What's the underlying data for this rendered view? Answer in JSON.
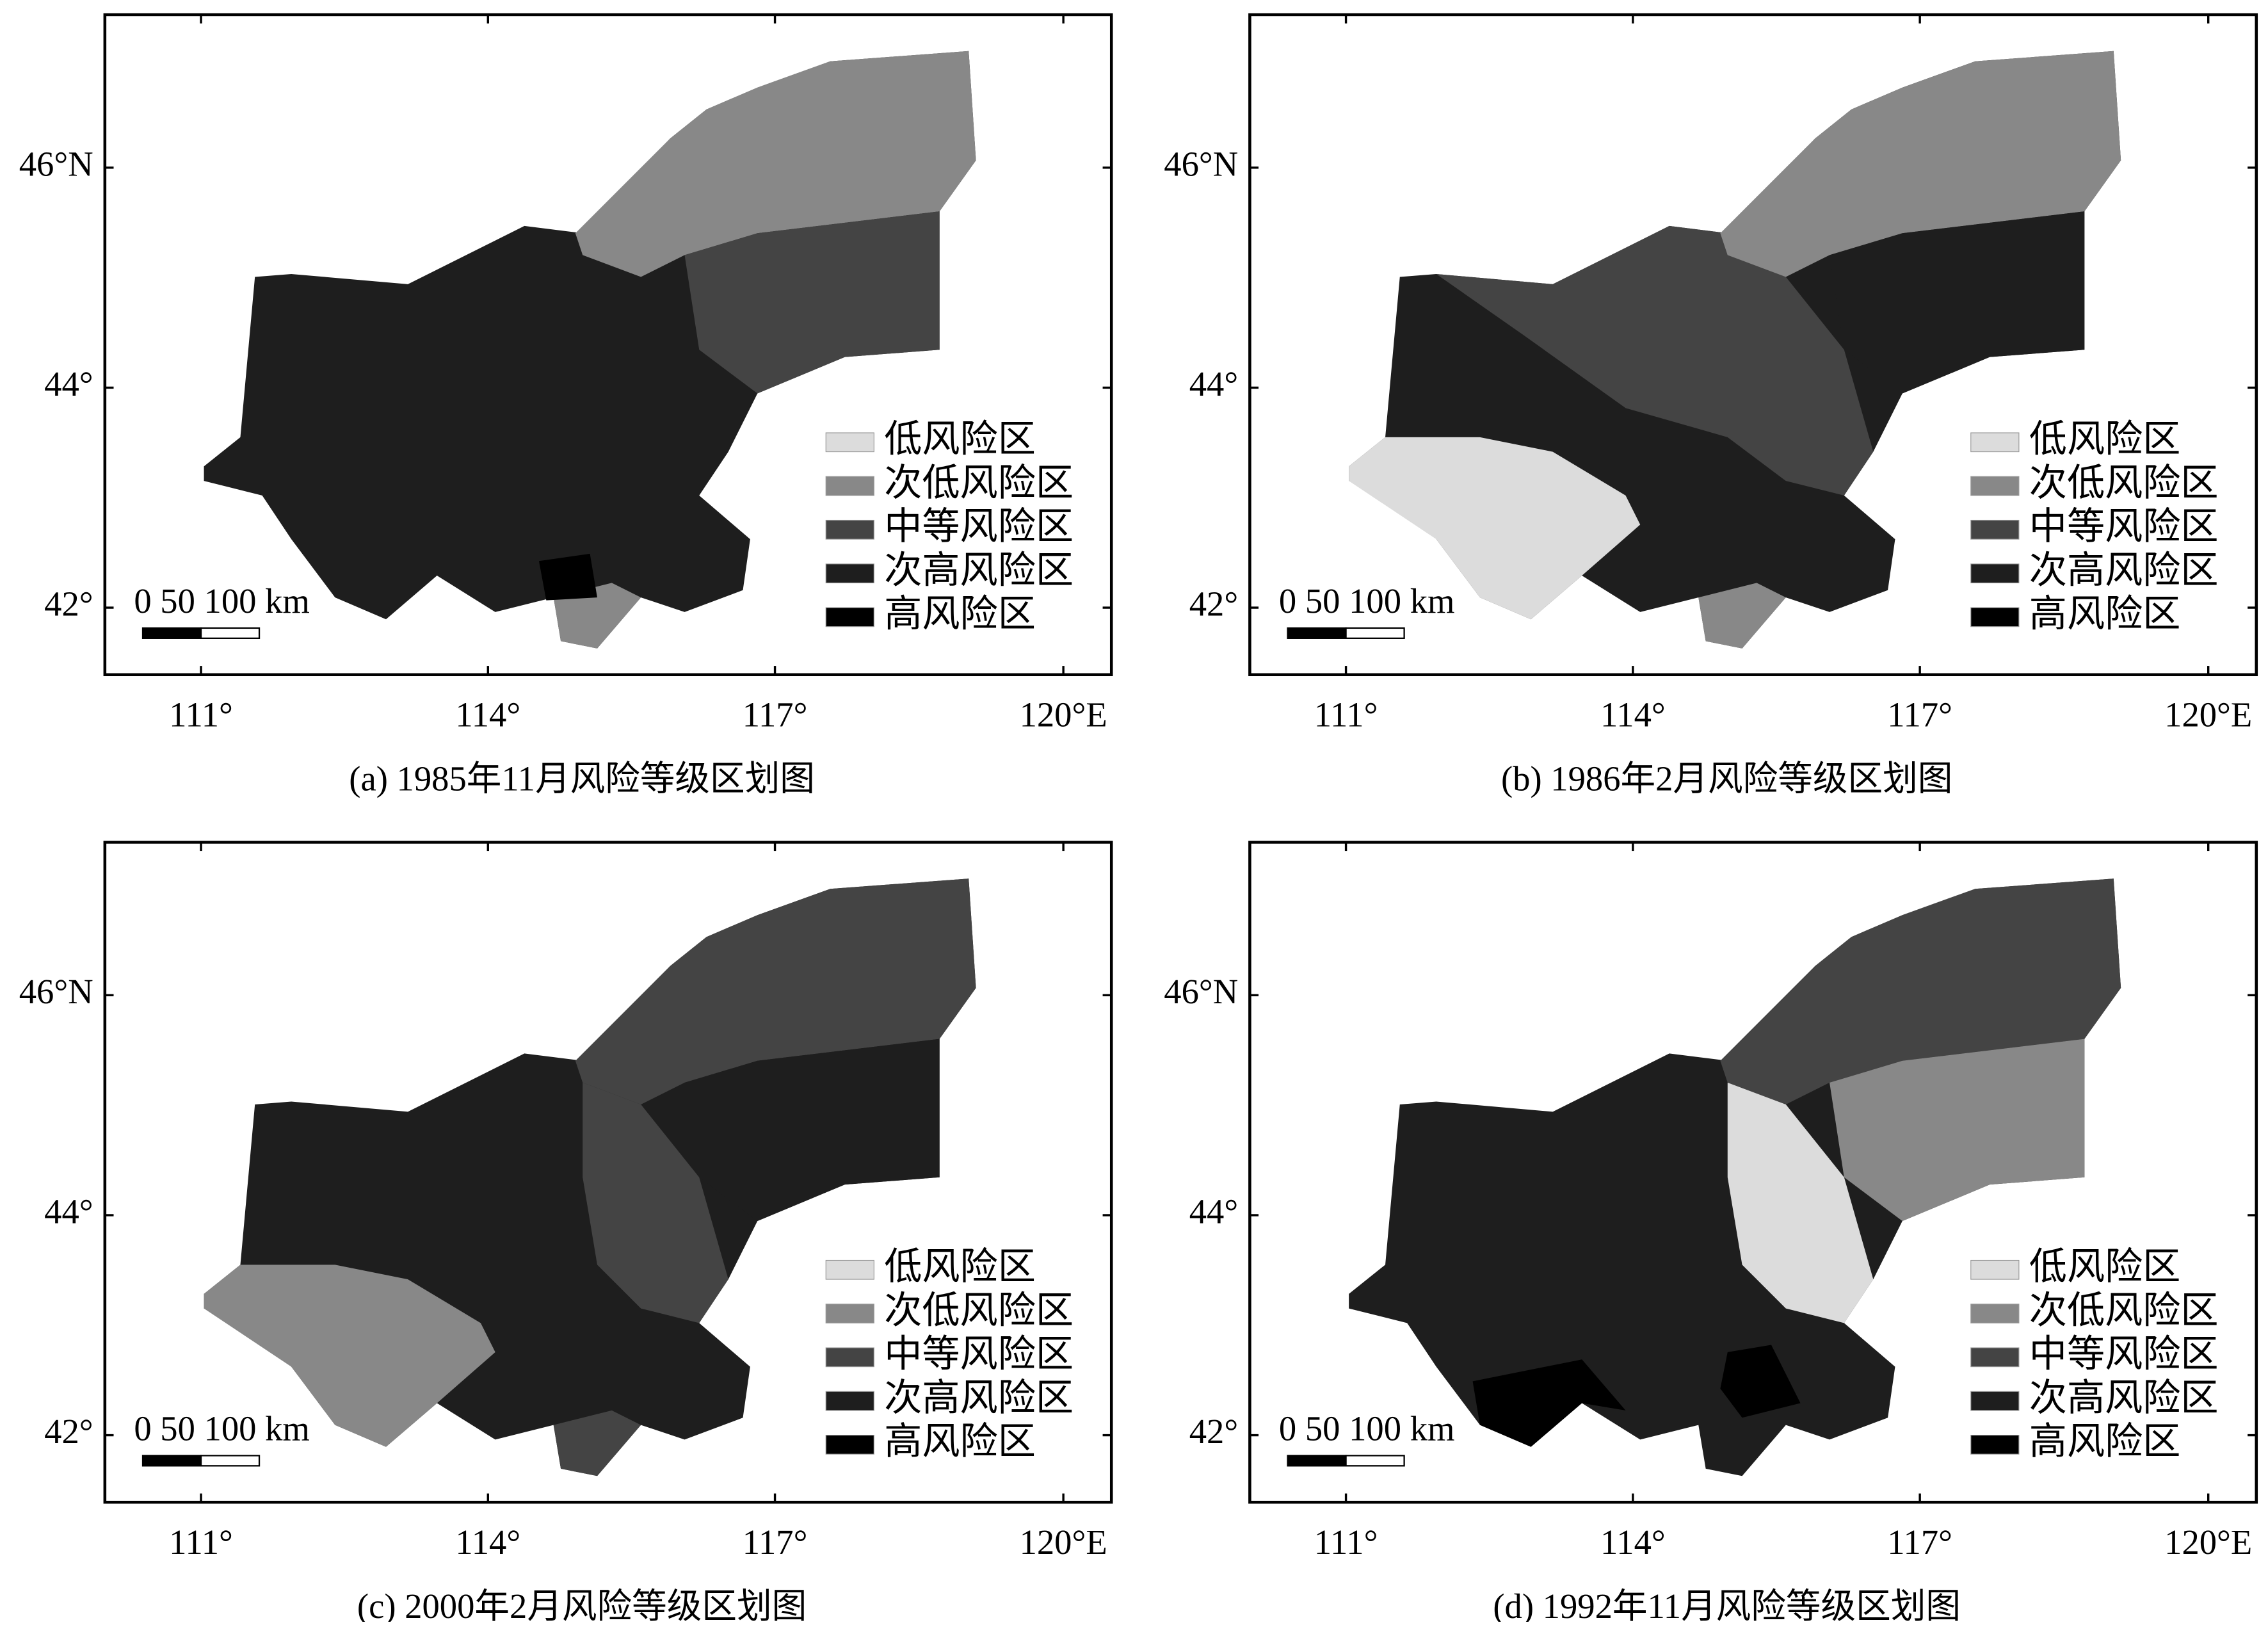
{
  "x_ticks": [
    "111°",
    "114°",
    "117°",
    "120°E"
  ],
  "y_ticks": [
    "46°N",
    "44°",
    "42°"
  ],
  "scale_bar": "0  50 100 km",
  "legend": [
    {
      "label": "低风险区",
      "color": "#dcdcdc"
    },
    {
      "label": "次低风险区",
      "color": "#888888"
    },
    {
      "label": "中等风险区",
      "color": "#444444"
    },
    {
      "label": "次高风险区",
      "color": "#1e1e1e"
    },
    {
      "label": "高风险区",
      "color": "#000000"
    }
  ],
  "panels": [
    {
      "caption": "(a) 1985年11月风险等级区划图"
    },
    {
      "caption": "(b) 1986年2月风险等级区划图"
    },
    {
      "caption": "(c) 2000年2月风险等级区划图"
    },
    {
      "caption": "(d) 1992年11月风险等级区划图"
    }
  ]
}
